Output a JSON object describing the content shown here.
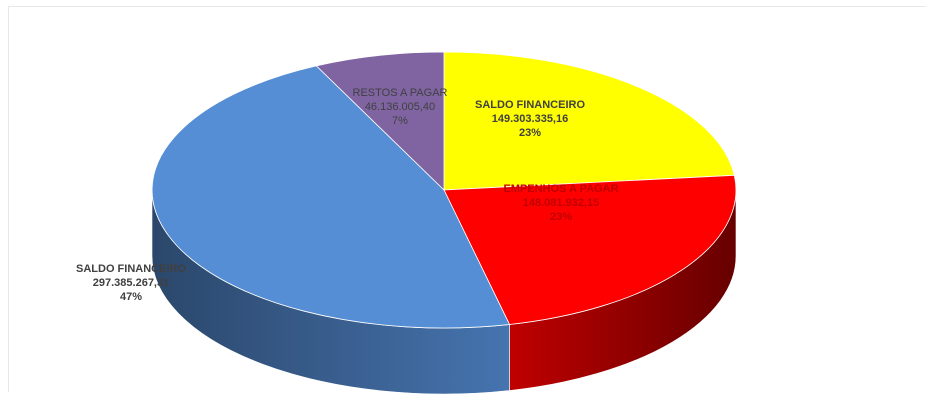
{
  "chart_data": {
    "type": "pie",
    "style": "3d",
    "slices": [
      {
        "name": "SALDO FINANCEIRO",
        "value_label": "149.303.335,16",
        "value": 149303335.16,
        "percent_label": "23%",
        "color": "#ffff00"
      },
      {
        "name": "EMPENHOS A PAGAR",
        "value_label": "148.081.932,15",
        "value": 148081932.15,
        "percent_label": "23%",
        "color": "#ff0000"
      },
      {
        "name": "SALDO FINANCEIRO",
        "value_label": "297.385.267,31",
        "value": 297385267.31,
        "percent_label": "47%",
        "color": "#558ed5"
      },
      {
        "name": "RESTOS A PAGAR",
        "value_label": "46.136.005,40",
        "value": 46136005.4,
        "percent_label": "7%",
        "color": "#8064a2"
      }
    ]
  }
}
